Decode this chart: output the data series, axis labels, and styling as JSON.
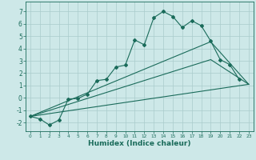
{
  "title": "",
  "xlabel": "Humidex (Indice chaleur)",
  "background_color": "#cde8e8",
  "grid_color": "#aacccc",
  "line_color": "#1a6b5a",
  "xlim": [
    -0.5,
    23.5
  ],
  "ylim": [
    -2.7,
    7.8
  ],
  "xticks": [
    0,
    1,
    2,
    3,
    4,
    5,
    6,
    7,
    8,
    9,
    10,
    11,
    12,
    13,
    14,
    15,
    16,
    17,
    18,
    19,
    20,
    21,
    22,
    23
  ],
  "yticks": [
    -2,
    -1,
    0,
    1,
    2,
    3,
    4,
    5,
    6,
    7
  ],
  "series": [
    {
      "x": [
        0,
        1,
        2,
        3,
        4,
        5,
        6,
        7,
        8,
        9,
        10,
        11,
        12,
        13,
        14,
        15,
        16,
        17,
        18,
        19,
        20,
        21,
        22
      ],
      "y": [
        -1.5,
        -1.7,
        -2.2,
        -1.8,
        -0.1,
        -0.05,
        0.3,
        1.4,
        1.5,
        2.5,
        2.65,
        4.7,
        4.3,
        6.5,
        7.0,
        6.6,
        5.7,
        6.25,
        5.85,
        4.6,
        3.1,
        2.7,
        1.5
      ]
    },
    {
      "x": [
        0,
        23
      ],
      "y": [
        -1.5,
        1.1
      ]
    },
    {
      "x": [
        0,
        19,
        23
      ],
      "y": [
        -1.5,
        3.1,
        1.1
      ]
    },
    {
      "x": [
        0,
        19,
        23
      ],
      "y": [
        -1.5,
        4.55,
        1.1
      ]
    }
  ]
}
